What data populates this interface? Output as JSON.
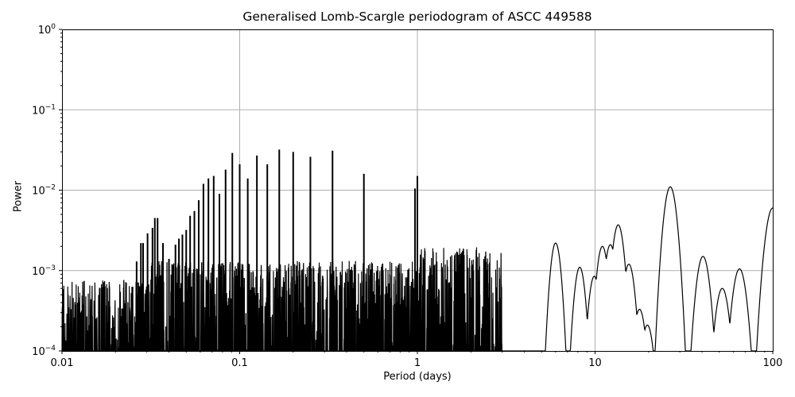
{
  "chart_data": {
    "type": "line",
    "title": "Generalised Lomb-Scargle periodogram of ASCC 449588",
    "xlabel": "Period (days)",
    "ylabel": "Power",
    "xscale": "log",
    "yscale": "log",
    "xlim": [
      0.01,
      100
    ],
    "ylim": [
      0.0001,
      1
    ],
    "grid": true,
    "x_ticks": [
      "0.01",
      "0.1",
      "1",
      "10",
      "100"
    ],
    "y_ticks": [
      "10^-4",
      "10^-3",
      "10^-2",
      "10^-1",
      "10^0"
    ],
    "line_color": "#000000",
    "grid_color": "#b0b0b0",
    "noise_floor_note": "dense noise between 1e-4 and ~1e-3 for periods below ~3 days",
    "harmonic_peaks": [
      {
        "period": 0.5,
        "power": 0.016
      },
      {
        "period": 0.333,
        "power": 0.031
      },
      {
        "period": 0.25,
        "power": 0.026
      },
      {
        "period": 0.2,
        "power": 0.03
      },
      {
        "period": 0.167,
        "power": 0.032
      },
      {
        "period": 0.143,
        "power": 0.021
      },
      {
        "period": 0.125,
        "power": 0.027
      },
      {
        "period": 0.111,
        "power": 0.014
      },
      {
        "period": 0.1,
        "power": 0.021
      },
      {
        "period": 0.0909,
        "power": 0.029
      },
      {
        "period": 0.0833,
        "power": 0.018
      },
      {
        "period": 0.0769,
        "power": 0.009
      },
      {
        "period": 0.0714,
        "power": 0.015
      },
      {
        "period": 0.0667,
        "power": 0.014
      },
      {
        "period": 0.0625,
        "power": 0.012
      },
      {
        "period": 0.0588,
        "power": 0.0075
      },
      {
        "period": 0.0556,
        "power": 0.0055
      },
      {
        "period": 0.0526,
        "power": 0.0048
      },
      {
        "period": 0.05,
        "power": 0.0032
      },
      {
        "period": 0.0476,
        "power": 0.0028
      },
      {
        "period": 0.0455,
        "power": 0.0025
      },
      {
        "period": 0.0435,
        "power": 0.0021
      },
      {
        "period": 0.0417,
        "power": 0.0012
      },
      {
        "period": 0.04,
        "power": 0.0014
      },
      {
        "period": 0.037,
        "power": 0.0022
      },
      {
        "period": 0.0345,
        "power": 0.0045
      },
      {
        "period": 0.0333,
        "power": 0.0045
      },
      {
        "period": 0.0323,
        "power": 0.0034
      },
      {
        "period": 0.0303,
        "power": 0.0029
      },
      {
        "period": 0.0286,
        "power": 0.0022
      },
      {
        "period": 0.0278,
        "power": 0.0022
      },
      {
        "period": 0.0263,
        "power": 0.0013
      },
      {
        "period": 1.0,
        "power": 0.015
      },
      {
        "period": 0.97,
        "power": 0.0105
      }
    ],
    "long_period_peaks": [
      {
        "period": 1.6,
        "power": 0.0023
      },
      {
        "period": 2.0,
        "power": 0.0014
      },
      {
        "period": 6.0,
        "power": 0.0022
      },
      {
        "period": 8.2,
        "power": 0.0011
      },
      {
        "period": 9.9,
        "power": 0.00085
      },
      {
        "period": 11.0,
        "power": 0.002
      },
      {
        "period": 12.2,
        "power": 0.0021
      },
      {
        "period": 13.5,
        "power": 0.0037
      },
      {
        "period": 15.5,
        "power": 0.0012
      },
      {
        "period": 17.8,
        "power": 0.00033
      },
      {
        "period": 19.7,
        "power": 0.00021
      },
      {
        "period": 26.5,
        "power": 0.011
      },
      {
        "period": 40.5,
        "power": 0.0015
      },
      {
        "period": 52.0,
        "power": 0.0006
      },
      {
        "period": 65.0,
        "power": 0.00105
      },
      {
        "period": 100.0,
        "power": 0.006
      }
    ]
  }
}
